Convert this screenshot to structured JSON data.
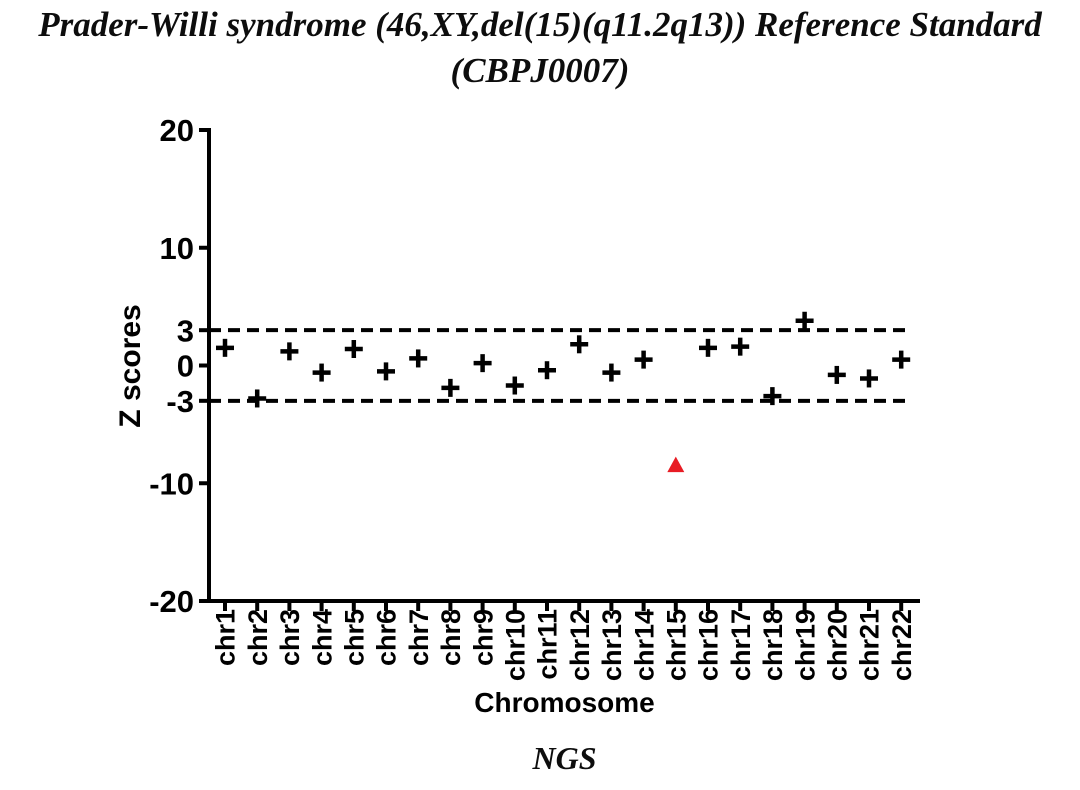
{
  "chart_data": {
    "type": "scatter",
    "title": "Prader-Willi syndrome (46,XY,del(15)(q11.2q13)) Reference Standard",
    "subtitle": "(CBPJ0007)",
    "xlabel": "Chromosome",
    "ylabel": "Z scores",
    "categories": [
      "chr1",
      "chr2",
      "chr3",
      "chr4",
      "chr5",
      "chr6",
      "chr7",
      "chr8",
      "chr9",
      "chr10",
      "chr11",
      "chr12",
      "chr13",
      "chr14",
      "chr15",
      "chr16",
      "chr17",
      "chr18",
      "chr19",
      "chr20",
      "chr21",
      "chr22"
    ],
    "series": [
      {
        "name": "NGS",
        "marker": "plus",
        "color": "#000000",
        "values": [
          1.5,
          -2.8,
          1.2,
          -0.6,
          1.4,
          -0.5,
          0.6,
          -1.9,
          0.2,
          -1.7,
          -0.4,
          1.8,
          -0.6,
          0.5,
          -8.5,
          1.5,
          1.6,
          -2.6,
          3.8,
          -0.8,
          -1.1,
          0.5
        ]
      }
    ],
    "outlier": {
      "category": "chr15",
      "value": -8.5,
      "marker": "triangle-up",
      "color": "#e81c24"
    },
    "thresholds": {
      "values": [
        3,
        -3
      ],
      "style": "dashed",
      "color": "#000000"
    },
    "ylim": [
      -20,
      20
    ],
    "yticks": [
      20,
      10,
      3,
      0,
      -3,
      -10,
      -20
    ],
    "grid": false,
    "legend": "none",
    "axis_color": "#000000"
  }
}
